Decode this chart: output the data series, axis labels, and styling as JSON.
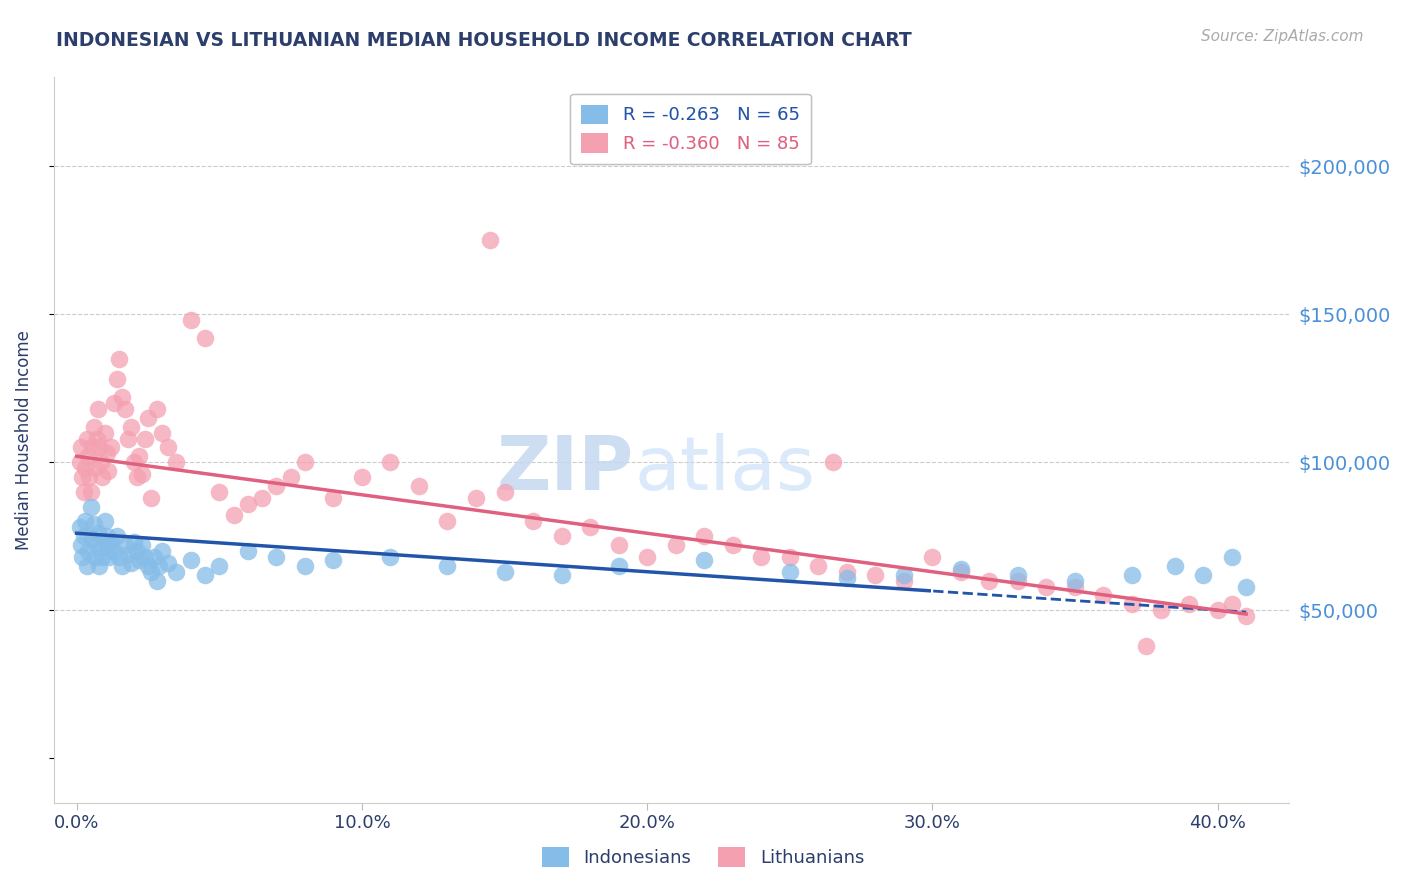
{
  "title": "INDONESIAN VS LITHUANIAN MEDIAN HOUSEHOLD INCOME CORRELATION CHART",
  "source": "Source: ZipAtlas.com",
  "ylabel": "Median Household Income",
  "title_color": "#2c3e6b",
  "right_tick_color": "#4a90d9",
  "indonesian_color": "#85bce8",
  "lithuanian_color": "#f4a0b0",
  "blue_line_color": "#2255aa",
  "pink_line_color": "#e06080",
  "indonesian_x": [
    0.1,
    0.15,
    0.2,
    0.25,
    0.3,
    0.35,
    0.4,
    0.5,
    0.55,
    0.6,
    0.65,
    0.7,
    0.75,
    0.8,
    0.85,
    0.9,
    1.0,
    1.05,
    1.1,
    1.15,
    1.2,
    1.3,
    1.4,
    1.5,
    1.6,
    1.7,
    1.8,
    1.9,
    2.0,
    2.1,
    2.2,
    2.3,
    2.4,
    2.5,
    2.6,
    2.7,
    2.8,
    2.9,
    3.0,
    3.2,
    3.5,
    4.0,
    4.5,
    5.0,
    6.0,
    7.0,
    8.0,
    9.0,
    11.0,
    13.0,
    15.0,
    17.0,
    19.0,
    22.0,
    25.0,
    27.0,
    29.0,
    31.0,
    33.0,
    35.0,
    37.0,
    38.5,
    39.5,
    40.5,
    41.0
  ],
  "indonesian_y": [
    78000,
    72000,
    68000,
    75000,
    80000,
    65000,
    70000,
    85000,
    74000,
    79000,
    68000,
    72000,
    76000,
    65000,
    71000,
    68000,
    80000,
    75000,
    72000,
    68000,
    73000,
    70000,
    75000,
    68000,
    65000,
    72000,
    69000,
    66000,
    73000,
    70000,
    67000,
    72000,
    68000,
    65000,
    63000,
    68000,
    60000,
    65000,
    70000,
    66000,
    63000,
    67000,
    62000,
    65000,
    70000,
    68000,
    65000,
    67000,
    68000,
    65000,
    63000,
    62000,
    65000,
    67000,
    63000,
    61000,
    62000,
    64000,
    62000,
    60000,
    62000,
    65000,
    62000,
    68000,
    58000
  ],
  "lithuanian_x": [
    0.1,
    0.15,
    0.2,
    0.25,
    0.3,
    0.35,
    0.4,
    0.45,
    0.5,
    0.55,
    0.6,
    0.65,
    0.7,
    0.75,
    0.8,
    0.85,
    0.9,
    1.0,
    1.05,
    1.1,
    1.2,
    1.3,
    1.4,
    1.5,
    1.6,
    1.7,
    1.8,
    1.9,
    2.0,
    2.1,
    2.2,
    2.3,
    2.4,
    2.5,
    2.6,
    2.8,
    3.0,
    3.2,
    3.5,
    4.0,
    4.5,
    5.0,
    5.5,
    6.0,
    6.5,
    7.0,
    7.5,
    8.0,
    9.0,
    10.0,
    11.0,
    12.0,
    13.0,
    14.0,
    15.0,
    16.0,
    17.0,
    18.0,
    19.0,
    20.0,
    21.0,
    22.0,
    23.0,
    24.0,
    25.0,
    26.0,
    27.0,
    28.0,
    29.0,
    30.0,
    31.0,
    32.0,
    33.0,
    34.0,
    35.0,
    36.0,
    37.0,
    38.0,
    39.0,
    40.0,
    40.5,
    41.0,
    14.5,
    26.5,
    37.5
  ],
  "lithuanian_y": [
    100000,
    105000,
    95000,
    90000,
    98000,
    108000,
    102000,
    95000,
    90000,
    105000,
    112000,
    98000,
    108000,
    118000,
    105000,
    100000,
    95000,
    110000,
    103000,
    97000,
    105000,
    120000,
    128000,
    135000,
    122000,
    118000,
    108000,
    112000,
    100000,
    95000,
    102000,
    96000,
    108000,
    115000,
    88000,
    118000,
    110000,
    105000,
    100000,
    148000,
    142000,
    90000,
    82000,
    86000,
    88000,
    92000,
    95000,
    100000,
    88000,
    95000,
    100000,
    92000,
    80000,
    88000,
    90000,
    80000,
    75000,
    78000,
    72000,
    68000,
    72000,
    75000,
    72000,
    68000,
    68000,
    65000,
    63000,
    62000,
    60000,
    68000,
    63000,
    60000,
    60000,
    58000,
    58000,
    55000,
    52000,
    50000,
    52000,
    50000,
    52000,
    48000,
    175000,
    100000,
    38000
  ],
  "blue_solid_end": 30.0,
  "ylim_low": -15000,
  "ylim_high": 230000,
  "xlim_low": -0.8,
  "xlim_high": 42.5,
  "ytick_positions": [
    0,
    50000,
    100000,
    150000,
    200000
  ],
  "right_ytick_labels": [
    "",
    "$50,000",
    "$100,000",
    "$150,000",
    "$200,000"
  ],
  "xtick_positions": [
    0,
    10,
    20,
    30,
    40
  ],
  "xtick_labels": [
    "0.0%",
    "10.0%",
    "20.0%",
    "30.0%",
    "40.0%"
  ]
}
